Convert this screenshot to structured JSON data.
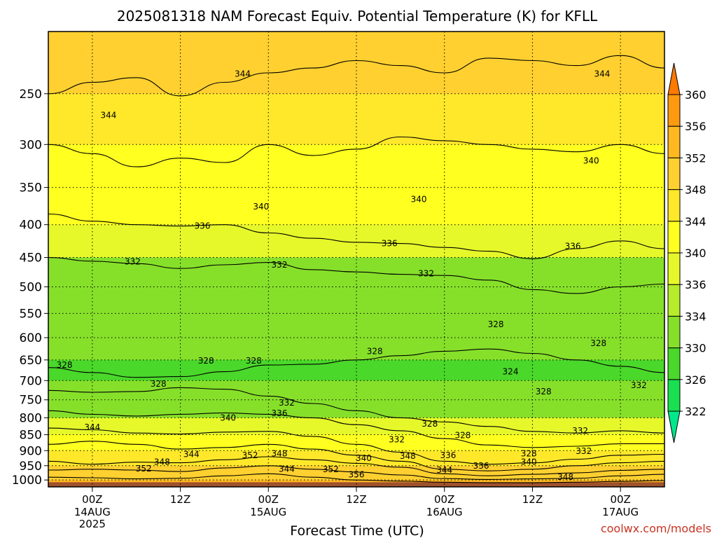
{
  "chart_data": {
    "type": "contour",
    "title": "2025081318 NAM Forecast Equiv. Potential Temperature (K) for KFLL",
    "xlabel": "Forecast Time (UTC)",
    "ylabel": "",
    "x_ticks": [
      {
        "hour": 6,
        "label": "00Z",
        "sub": [
          "14AUG",
          "2025"
        ]
      },
      {
        "hour": 18,
        "label": "12Z",
        "sub": []
      },
      {
        "hour": 30,
        "label": "00Z",
        "sub": [
          "15AUG"
        ]
      },
      {
        "hour": 42,
        "label": "12Z",
        "sub": []
      },
      {
        "hour": 54,
        "label": "00Z",
        "sub": [
          "16AUG"
        ]
      },
      {
        "hour": 66,
        "label": "12Z",
        "sub": []
      },
      {
        "hour": 78,
        "label": "00Z",
        "sub": [
          "17AUG"
        ]
      }
    ],
    "xlim_hours": [
      0,
      84
    ],
    "y_ticks": [
      250,
      300,
      350,
      400,
      450,
      500,
      550,
      600,
      650,
      700,
      750,
      800,
      850,
      900,
      950,
      1000
    ],
    "ylim_hpa": [
      1025,
      200
    ],
    "y_scale": "log-pressure",
    "grid": true,
    "colorbar": {
      "labels": [
        322,
        326,
        330,
        334,
        336,
        340,
        344,
        348,
        352,
        356,
        360
      ],
      "colors": [
        "#00e88a",
        "#18e050",
        "#4ad82a",
        "#86e02a",
        "#b6ec2a",
        "#e6f82a",
        "#ffff20",
        "#ffe82a",
        "#ffd030",
        "#ffb820",
        "#ff9a10",
        "#ff7a00"
      ]
    },
    "bands": [
      {
        "p": 200,
        "theta": 348
      },
      {
        "p": 250,
        "theta": 344
      },
      {
        "p": 300,
        "theta": 342
      },
      {
        "p": 350,
        "theta": 340
      },
      {
        "p": 400,
        "theta": 337
      },
      {
        "p": 450,
        "theta": 333
      },
      {
        "p": 500,
        "theta": 331
      },
      {
        "p": 550,
        "theta": 330
      },
      {
        "p": 600,
        "theta": 330
      },
      {
        "p": 650,
        "theta": 329
      },
      {
        "p": 700,
        "theta": 330
      },
      {
        "p": 750,
        "theta": 333
      },
      {
        "p": 800,
        "theta": 338
      },
      {
        "p": 850,
        "theta": 342
      },
      {
        "p": 900,
        "theta": 346
      },
      {
        "p": 950,
        "theta": 350
      },
      {
        "p": 1000,
        "theta": 354
      },
      {
        "p": 1025,
        "theta": 360
      }
    ],
    "contour_labels": [
      {
        "value": "344",
        "hour": 8.2,
        "p": 270
      },
      {
        "value": "344",
        "hour": 26.5,
        "p": 233
      },
      {
        "value": "344",
        "hour": 75.5,
        "p": 233
      },
      {
        "value": "340",
        "hour": 74,
        "p": 318
      },
      {
        "value": "340",
        "hour": 29,
        "p": 375
      },
      {
        "value": "340",
        "hour": 50.5,
        "p": 365
      },
      {
        "value": "336",
        "hour": 21,
        "p": 402
      },
      {
        "value": "336",
        "hour": 46.5,
        "p": 428
      },
      {
        "value": "336",
        "hour": 71.5,
        "p": 432
      },
      {
        "value": "332",
        "hour": 11.5,
        "p": 457
      },
      {
        "value": "332",
        "hour": 31.5,
        "p": 462
      },
      {
        "value": "332",
        "hour": 51.5,
        "p": 477
      },
      {
        "value": "328",
        "hour": 61,
        "p": 572
      },
      {
        "value": "328",
        "hour": 75,
        "p": 612
      },
      {
        "value": "328",
        "hour": 2.2,
        "p": 662
      },
      {
        "value": "328",
        "hour": 21.5,
        "p": 652
      },
      {
        "value": "328",
        "hour": 28,
        "p": 652
      },
      {
        "value": "328",
        "hour": 44.5,
        "p": 630
      },
      {
        "value": "324",
        "hour": 63,
        "p": 678
      },
      {
        "value": "328",
        "hour": 15,
        "p": 708
      },
      {
        "value": "328",
        "hour": 67.5,
        "p": 728
      },
      {
        "value": "332",
        "hour": 80.5,
        "p": 712
      },
      {
        "value": "332",
        "hour": 32.5,
        "p": 758
      },
      {
        "value": "336",
        "hour": 31.5,
        "p": 787
      },
      {
        "value": "340",
        "hour": 24.5,
        "p": 800
      },
      {
        "value": "344",
        "hour": 6,
        "p": 828
      },
      {
        "value": "328",
        "hour": 52,
        "p": 817
      },
      {
        "value": "328",
        "hour": 56.5,
        "p": 852
      },
      {
        "value": "332",
        "hour": 47.5,
        "p": 865
      },
      {
        "value": "332",
        "hour": 72.5,
        "p": 838
      },
      {
        "value": "332",
        "hour": 73,
        "p": 902
      },
      {
        "value": "328",
        "hour": 65.5,
        "p": 910
      },
      {
        "value": "344",
        "hour": 19.5,
        "p": 912
      },
      {
        "value": "352",
        "hour": 27.5,
        "p": 915
      },
      {
        "value": "348",
        "hour": 31.5,
        "p": 910
      },
      {
        "value": "348",
        "hour": 15.5,
        "p": 937
      },
      {
        "value": "340",
        "hour": 43,
        "p": 925
      },
      {
        "value": "348",
        "hour": 49,
        "p": 918
      },
      {
        "value": "336",
        "hour": 54.5,
        "p": 915
      },
      {
        "value": "340",
        "hour": 65.5,
        "p": 937
      },
      {
        "value": "352",
        "hour": 13,
        "p": 960
      },
      {
        "value": "344",
        "hour": 32.5,
        "p": 961
      },
      {
        "value": "352",
        "hour": 38.5,
        "p": 962
      },
      {
        "value": "356",
        "hour": 42,
        "p": 981
      },
      {
        "value": "344",
        "hour": 54,
        "p": 965
      },
      {
        "value": "336",
        "hour": 59,
        "p": 950
      },
      {
        "value": "348",
        "hour": 70.5,
        "p": 990
      }
    ],
    "contour_paths": [
      {
        "theta": 344,
        "points": [
          [
            0,
            250
          ],
          [
            6,
            240
          ],
          [
            12,
            236
          ],
          [
            18,
            252
          ],
          [
            24,
            240
          ],
          [
            30,
            232
          ],
          [
            36,
            228
          ],
          [
            42,
            222
          ],
          [
            48,
            226
          ],
          [
            54,
            232
          ],
          [
            60,
            220
          ],
          [
            66,
            222
          ],
          [
            72,
            226
          ],
          [
            78,
            218
          ],
          [
            84,
            228
          ]
        ]
      },
      {
        "theta": 340,
        "points": [
          [
            0,
            300
          ],
          [
            6,
            310
          ],
          [
            12,
            325
          ],
          [
            18,
            315
          ],
          [
            24,
            320
          ],
          [
            30,
            300
          ],
          [
            36,
            312
          ],
          [
            42,
            305
          ],
          [
            48,
            292
          ],
          [
            54,
            296
          ],
          [
            60,
            300
          ],
          [
            66,
            305
          ],
          [
            72,
            308
          ],
          [
            78,
            300
          ],
          [
            84,
            310
          ]
        ]
      },
      {
        "theta": 336,
        "points": [
          [
            0,
            385
          ],
          [
            6,
            395
          ],
          [
            12,
            400
          ],
          [
            18,
            402
          ],
          [
            24,
            400
          ],
          [
            30,
            412
          ],
          [
            36,
            420
          ],
          [
            42,
            426
          ],
          [
            48,
            428
          ],
          [
            54,
            434
          ],
          [
            60,
            440
          ],
          [
            66,
            452
          ],
          [
            72,
            436
          ],
          [
            78,
            424
          ],
          [
            84,
            436
          ]
        ]
      },
      {
        "theta": 332,
        "points": [
          [
            0,
            450
          ],
          [
            6,
            456
          ],
          [
            12,
            460
          ],
          [
            18,
            468
          ],
          [
            24,
            462
          ],
          [
            30,
            458
          ],
          [
            36,
            470
          ],
          [
            42,
            474
          ],
          [
            48,
            478
          ],
          [
            54,
            480
          ],
          [
            60,
            488
          ],
          [
            66,
            505
          ],
          [
            72,
            512
          ],
          [
            78,
            500
          ],
          [
            84,
            495
          ]
        ]
      },
      {
        "theta": 328,
        "points": [
          [
            0,
            668
          ],
          [
            6,
            680
          ],
          [
            12,
            692
          ],
          [
            18,
            690
          ],
          [
            24,
            678
          ],
          [
            30,
            662
          ],
          [
            36,
            660
          ],
          [
            42,
            650
          ],
          [
            48,
            640
          ],
          [
            54,
            630
          ],
          [
            60,
            625
          ],
          [
            66,
            635
          ],
          [
            72,
            650
          ],
          [
            78,
            665
          ],
          [
            84,
            680
          ]
        ]
      },
      {
        "theta": 332,
        "points": [
          [
            0,
            725
          ],
          [
            6,
            730
          ],
          [
            12,
            728
          ],
          [
            18,
            718
          ],
          [
            24,
            722
          ],
          [
            30,
            740
          ],
          [
            36,
            760
          ],
          [
            42,
            780
          ],
          [
            48,
            800
          ],
          [
            54,
            812
          ],
          [
            60,
            825
          ],
          [
            66,
            840
          ],
          [
            72,
            845
          ],
          [
            78,
            838
          ],
          [
            84,
            845
          ]
        ]
      },
      {
        "theta": 336,
        "points": [
          [
            0,
            780
          ],
          [
            6,
            790
          ],
          [
            12,
            795
          ],
          [
            18,
            790
          ],
          [
            24,
            786
          ],
          [
            30,
            790
          ],
          [
            36,
            800
          ],
          [
            42,
            820
          ],
          [
            48,
            838
          ],
          [
            54,
            862
          ],
          [
            60,
            882
          ],
          [
            66,
            890
          ],
          [
            72,
            886
          ],
          [
            78,
            878
          ],
          [
            84,
            878
          ]
        ]
      },
      {
        "theta": 340,
        "points": [
          [
            0,
            830
          ],
          [
            6,
            835
          ],
          [
            12,
            845
          ],
          [
            18,
            848
          ],
          [
            24,
            842
          ],
          [
            30,
            840
          ],
          [
            36,
            855
          ],
          [
            42,
            880
          ],
          [
            48,
            905
          ],
          [
            54,
            935
          ],
          [
            60,
            945
          ],
          [
            66,
            940
          ],
          [
            72,
            928
          ],
          [
            78,
            915
          ],
          [
            84,
            912
          ]
        ]
      },
      {
        "theta": 344,
        "points": [
          [
            0,
            880
          ],
          [
            6,
            870
          ],
          [
            12,
            880
          ],
          [
            18,
            895
          ],
          [
            24,
            890
          ],
          [
            30,
            880
          ],
          [
            36,
            895
          ],
          [
            42,
            915
          ],
          [
            48,
            935
          ],
          [
            54,
            962
          ],
          [
            60,
            968
          ],
          [
            66,
            962
          ],
          [
            72,
            950
          ],
          [
            78,
            940
          ],
          [
            84,
            935
          ]
        ]
      },
      {
        "theta": 348,
        "points": [
          [
            0,
            935
          ],
          [
            6,
            945
          ],
          [
            12,
            938
          ],
          [
            18,
            940
          ],
          [
            24,
            930
          ],
          [
            30,
            920
          ],
          [
            36,
            930
          ],
          [
            42,
            942
          ],
          [
            48,
            955
          ],
          [
            54,
            978
          ],
          [
            60,
            985
          ],
          [
            66,
            980
          ],
          [
            72,
            975
          ],
          [
            78,
            966
          ],
          [
            84,
            962
          ]
        ]
      },
      {
        "theta": 352,
        "points": [
          [
            0,
            965
          ],
          [
            6,
            962
          ],
          [
            12,
            965
          ],
          [
            18,
            970
          ],
          [
            24,
            958
          ],
          [
            30,
            950
          ],
          [
            36,
            962
          ],
          [
            42,
            972
          ],
          [
            48,
            982
          ],
          [
            54,
            995
          ],
          [
            60,
            998
          ],
          [
            66,
            996
          ],
          [
            72,
            994
          ],
          [
            78,
            985
          ],
          [
            84,
            980
          ]
        ]
      },
      {
        "theta": 356,
        "points": [
          [
            0,
            990
          ],
          [
            6,
            992
          ],
          [
            12,
            996
          ],
          [
            18,
            994
          ],
          [
            24,
            985
          ],
          [
            30,
            978
          ],
          [
            36,
            990
          ],
          [
            42,
            1000
          ],
          [
            48,
            1004
          ],
          [
            54,
            1008
          ],
          [
            60,
            1010
          ],
          [
            66,
            1010
          ],
          [
            72,
            1008
          ],
          [
            78,
            1005
          ],
          [
            84,
            1002
          ]
        ]
      }
    ]
  },
  "watermark": "coolwx.com/models"
}
